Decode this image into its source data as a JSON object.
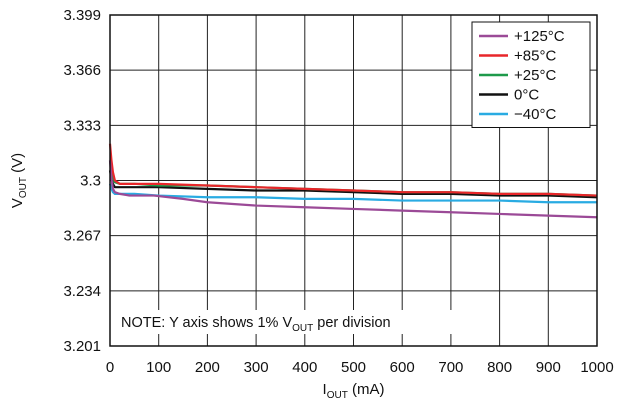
{
  "chart_data": {
    "type": "line",
    "xlabel": {
      "main": "I",
      "sub": "OUT",
      "rest": " (mA)"
    },
    "ylabel": {
      "main": "V",
      "sub": "OUT",
      "rest": " (V)"
    },
    "xlim": [
      0,
      1000
    ],
    "ylim": [
      3.201,
      3.399
    ],
    "x_ticks": [
      0,
      100,
      200,
      300,
      400,
      500,
      600,
      700,
      800,
      900,
      1000
    ],
    "y_ticks": [
      3.201,
      3.234,
      3.267,
      3.3,
      3.333,
      3.366,
      3.399
    ],
    "y_tick_labels": [
      "3.201",
      "3.234",
      "3.267",
      "3.3",
      "3.333",
      "3.366",
      "3.399"
    ],
    "grid": true,
    "legend_position": "top-right",
    "annotation": {
      "pre": "NOTE: Y axis shows 1% V",
      "sub": "OUT",
      "post": " per division"
    },
    "series": [
      {
        "name": "+125°C",
        "color": "#9b4a97",
        "points": [
          [
            0,
            3.312
          ],
          [
            3,
            3.301
          ],
          [
            6,
            3.295
          ],
          [
            10,
            3.293
          ],
          [
            20,
            3.292
          ],
          [
            40,
            3.291
          ],
          [
            90,
            3.291
          ],
          [
            150,
            3.289
          ],
          [
            200,
            3.287
          ],
          [
            300,
            3.285
          ],
          [
            400,
            3.284
          ],
          [
            500,
            3.283
          ],
          [
            600,
            3.282
          ],
          [
            700,
            3.281
          ],
          [
            800,
            3.28
          ],
          [
            900,
            3.279
          ],
          [
            1000,
            3.278
          ]
        ]
      },
      {
        "name": "+85°C",
        "color": "#e8262a",
        "points": [
          [
            0,
            3.322
          ],
          [
            3,
            3.312
          ],
          [
            6,
            3.305
          ],
          [
            10,
            3.3
          ],
          [
            20,
            3.298
          ],
          [
            50,
            3.298
          ],
          [
            100,
            3.298
          ],
          [
            200,
            3.297
          ],
          [
            300,
            3.296
          ],
          [
            400,
            3.295
          ],
          [
            500,
            3.294
          ],
          [
            600,
            3.293
          ],
          [
            700,
            3.293
          ],
          [
            800,
            3.292
          ],
          [
            900,
            3.292
          ],
          [
            1000,
            3.291
          ]
        ]
      },
      {
        "name": "+25°C",
        "color": "#1e9a4a",
        "points": [
          [
            0,
            3.312
          ],
          [
            3,
            3.306
          ],
          [
            6,
            3.302
          ],
          [
            10,
            3.299
          ],
          [
            20,
            3.298
          ],
          [
            50,
            3.298
          ],
          [
            100,
            3.297
          ],
          [
            200,
            3.297
          ],
          [
            300,
            3.296
          ],
          [
            400,
            3.295
          ],
          [
            500,
            3.294
          ],
          [
            600,
            3.293
          ],
          [
            700,
            3.293
          ],
          [
            800,
            3.292
          ],
          [
            900,
            3.292
          ],
          [
            1000,
            3.291
          ]
        ]
      },
      {
        "name": "0°C",
        "color": "#111111",
        "points": [
          [
            0,
            3.306
          ],
          [
            3,
            3.301
          ],
          [
            6,
            3.298
          ],
          [
            10,
            3.296
          ],
          [
            20,
            3.296
          ],
          [
            50,
            3.296
          ],
          [
            100,
            3.296
          ],
          [
            200,
            3.295
          ],
          [
            300,
            3.294
          ],
          [
            400,
            3.294
          ],
          [
            500,
            3.293
          ],
          [
            600,
            3.292
          ],
          [
            700,
            3.292
          ],
          [
            800,
            3.291
          ],
          [
            900,
            3.291
          ],
          [
            1000,
            3.29
          ]
        ]
      },
      {
        "name": "−40°C",
        "color": "#29abe2",
        "points": [
          [
            0,
            3.298
          ],
          [
            3,
            3.295
          ],
          [
            6,
            3.293
          ],
          [
            10,
            3.292
          ],
          [
            20,
            3.292
          ],
          [
            50,
            3.292
          ],
          [
            100,
            3.291
          ],
          [
            200,
            3.29
          ],
          [
            300,
            3.29
          ],
          [
            400,
            3.289
          ],
          [
            500,
            3.289
          ],
          [
            600,
            3.288
          ],
          [
            700,
            3.288
          ],
          [
            800,
            3.288
          ],
          [
            900,
            3.287
          ],
          [
            1000,
            3.287
          ]
        ]
      }
    ]
  }
}
